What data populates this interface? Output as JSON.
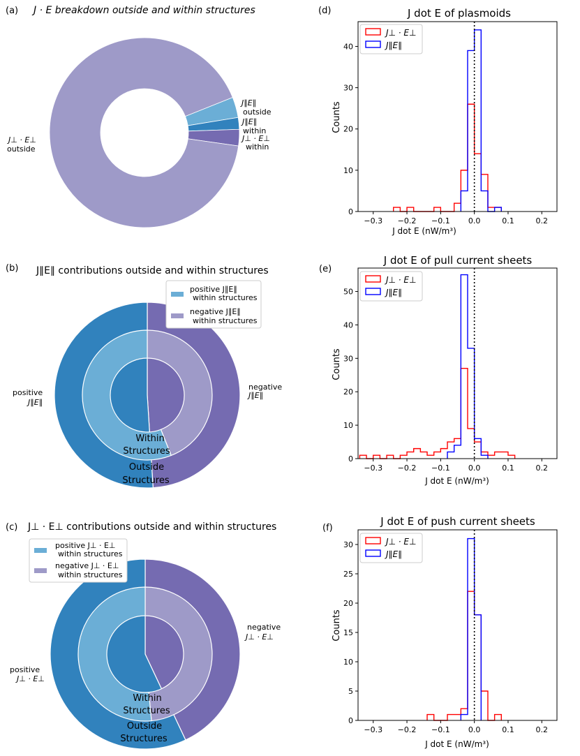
{
  "colors": {
    "pie_light_purple": "#9e9ac8",
    "pie_light_blue": "#6baed6",
    "pie_mid_blue": "#3182bd",
    "pie_dark_purple": "#756bb1",
    "hist_red": "#ff0000",
    "hist_blue": "#0000ff"
  },
  "chart_data": [
    {
      "panel": "(a)",
      "type": "pie",
      "title": "J · E breakdown outside and within structures",
      "slices": [
        {
          "label_line1": "J∥E∥",
          "label_line2": "outside",
          "value": 3.5,
          "color": "#6baed6"
        },
        {
          "label_line1": "J∥E∥",
          "label_line2": "within",
          "value": 2.0,
          "color": "#3182bd"
        },
        {
          "label_line1": "J⊥ · E⊥",
          "label_line2": "within",
          "value": 2.8,
          "color": "#756bb1"
        },
        {
          "label_line1": "J⊥ · E⊥",
          "label_line2": "outside",
          "value": 91.7,
          "color": "#9e9ac8"
        }
      ]
    },
    {
      "panel": "(b)",
      "type": "pie",
      "title": "J∥E∥ contributions outside and within structures",
      "outer": [
        {
          "label_line1": "negative",
          "label_line2": "J∥E∥",
          "value": 49,
          "color": "#756bb1"
        },
        {
          "label_line1": "positive",
          "label_line2": "J∥E∥",
          "value": 51,
          "color": "#3182bd"
        }
      ],
      "inner": [
        {
          "label": "negative J∥E∥ within structures",
          "value": 44,
          "color": "#9e9ac8"
        },
        {
          "label": "positive J∥E∥ within structures",
          "value": 56,
          "color": "#6baed6"
        }
      ],
      "inner_label_line1": "Within",
      "inner_label_line2": "Structures",
      "outer_label_line1": "Outside",
      "outer_label_line2": "Structures",
      "legend": [
        {
          "name_line1": "positive J∥E∥",
          "name_line2": "within structures",
          "color": "#6baed6"
        },
        {
          "name_line1": "negative J∥E∥",
          "name_line2": "within structures",
          "color": "#9e9ac8"
        }
      ]
    },
    {
      "panel": "(c)",
      "type": "pie",
      "title": "J⊥ · E⊥ contributions outside and within structures",
      "outer": [
        {
          "label_line1": "negative",
          "label_line2": "J⊥ · E⊥",
          "value": 43,
          "color": "#756bb1"
        },
        {
          "label_line1": "positive",
          "label_line2": "J⊥ · E⊥",
          "value": 57,
          "color": "#3182bd"
        }
      ],
      "inner": [
        {
          "label": "negative J⊥ · E⊥ within structures",
          "value": 48.5,
          "color": "#9e9ac8"
        },
        {
          "label": "positive J⊥ · E⊥ within structures",
          "value": 51.5,
          "color": "#6baed6"
        }
      ],
      "inner_label_line1": "Within",
      "inner_label_line2": "Structures",
      "outer_label_line1": "Outside",
      "outer_label_line2": "Structures",
      "legend": [
        {
          "name_line1": "positive J⊥ · E⊥",
          "name_line2": "within structures",
          "color": "#6baed6"
        },
        {
          "name_line1": "negative J⊥ · E⊥",
          "name_line2": "within structures",
          "color": "#9e9ac8"
        }
      ]
    },
    {
      "panel": "(d)",
      "type": "histogram",
      "title": "J dot E of plasmoids",
      "xlabel": "J dot E (nW/m³)",
      "ylabel": "Counts",
      "xlim": [
        -0.345,
        0.245
      ],
      "ylim": [
        0,
        46
      ],
      "xticks": [
        -0.3,
        -0.2,
        -0.1,
        0.0,
        0.1,
        0.2
      ],
      "xtick_labels": [
        "−0.3",
        "−0.2",
        "−0.1",
        "0.0",
        "0.1",
        "0.2"
      ],
      "yticks": [
        0,
        10,
        20,
        30,
        40
      ],
      "bin_start": -0.24,
      "bin_width": 0.02,
      "series": [
        {
          "name": "J⊥ · E⊥",
          "color": "#ff0000",
          "values": [
            1,
            0,
            1,
            0,
            0,
            0,
            1,
            0,
            0,
            2,
            10,
            26,
            14,
            9,
            1,
            1
          ]
        },
        {
          "name": "J∥E∥",
          "color": "#0000ff",
          "offset_bins": 10,
          "values": [
            5,
            39,
            44,
            5,
            0,
            1
          ]
        }
      ],
      "vline_x": 0.0
    },
    {
      "panel": "(e)",
      "type": "histogram",
      "title": "J dot E of pull current sheets",
      "xlabel": "J dot E (nW/m³)",
      "ylabel": "Counts",
      "xlim": [
        -0.345,
        0.245
      ],
      "ylim": [
        0,
        57
      ],
      "xticks": [
        -0.3,
        -0.2,
        -0.1,
        0.0,
        0.1,
        0.2
      ],
      "xtick_labels": [
        "−0.3",
        "−0.2",
        "−0.1",
        "0.0",
        "0.1",
        "0.2"
      ],
      "yticks": [
        0,
        10,
        20,
        30,
        40,
        50
      ],
      "bin_start": -0.34,
      "bin_width": 0.02,
      "series": [
        {
          "name": "J⊥ · E⊥",
          "color": "#ff0000",
          "values": [
            1,
            0,
            1,
            0,
            1,
            0,
            1,
            2,
            3,
            2,
            1,
            2,
            3,
            5,
            6,
            27,
            9,
            5,
            2,
            1,
            2,
            2,
            1
          ]
        },
        {
          "name": "J∥E∥",
          "color": "#0000ff",
          "offset_bins": 13,
          "values": [
            2,
            4,
            55,
            33,
            6,
            1
          ]
        }
      ],
      "vline_x": 0.0
    },
    {
      "panel": "(f)",
      "type": "histogram",
      "title": "J dot E of push current sheets",
      "xlabel": "J dot E (nW/m³)",
      "ylabel": "Counts",
      "xlim": [
        -0.345,
        0.245
      ],
      "ylim": [
        0,
        32.5
      ],
      "xticks": [
        -0.3,
        -0.2,
        -0.1,
        0.0,
        0.1,
        0.2
      ],
      "xtick_labels": [
        "−0.3",
        "−0.2",
        "−0.1",
        "0.0",
        "0.1",
        "0.2"
      ],
      "yticks": [
        0,
        5,
        10,
        15,
        20,
        25,
        30
      ],
      "bin_start": -0.14,
      "bin_width": 0.02,
      "series": [
        {
          "name": "J⊥ · E⊥",
          "color": "#ff0000",
          "values": [
            1,
            0,
            0,
            1,
            1,
            2,
            22,
            18,
            5,
            0,
            1
          ]
        },
        {
          "name": "J∥E∥",
          "color": "#0000ff",
          "offset_bins": 5,
          "values": [
            1,
            31,
            18
          ]
        }
      ],
      "vline_x": 0.0
    }
  ]
}
